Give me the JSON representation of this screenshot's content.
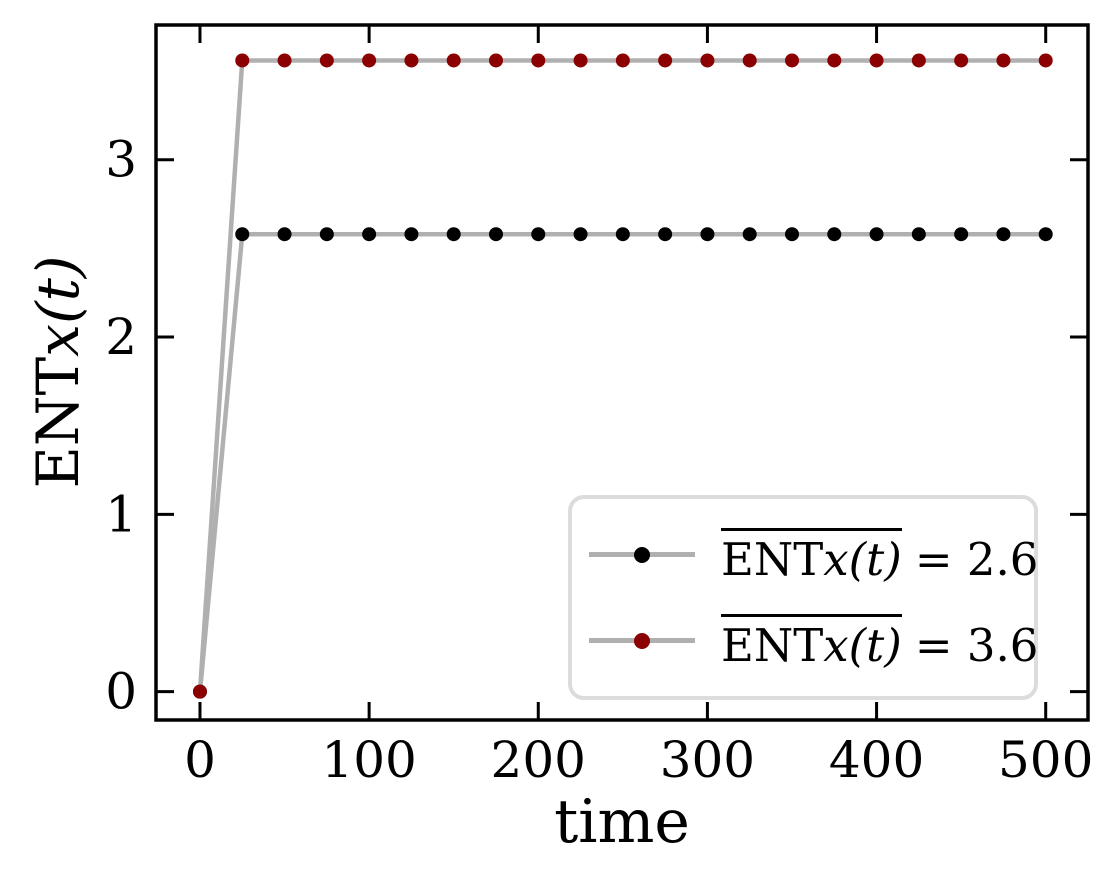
{
  "figure": {
    "background": "#ffffff",
    "frame_color": "#000000"
  },
  "labels": {
    "xlabel": "time",
    "ylabel_roman": "ENT",
    "ylabel_italic": "x(t)"
  },
  "legend": {
    "border_color": "#dcdcdc",
    "entries": [
      {
        "overline_roman": "ENT",
        "overline_italic": "x(t)",
        "value": "= 2.6",
        "marker_color": "#000000"
      },
      {
        "overline_roman": "ENT",
        "overline_italic": "x(t)",
        "value": "= 3.6",
        "marker_color": "#8b0000"
      }
    ]
  },
  "chart_data": {
    "type": "line",
    "title": "",
    "xlabel": "time",
    "ylabel": "ENTx(t)",
    "xlim": [
      -26,
      525
    ],
    "ylim": [
      -0.16,
      3.76
    ],
    "x_ticks": [
      0,
      100,
      200,
      300,
      400,
      500
    ],
    "y_ticks": [
      0,
      1,
      2,
      3
    ],
    "grid": false,
    "legend_position": "lower right",
    "x": [
      0,
      25,
      50,
      75,
      100,
      125,
      150,
      175,
      200,
      225,
      250,
      275,
      300,
      325,
      350,
      375,
      400,
      425,
      450,
      475,
      500
    ],
    "series": [
      {
        "name": "time-average ENTx(t) = 2.6",
        "marker_color": "#000000",
        "line_color": "#b0b0b0",
        "values": [
          0,
          2.58,
          2.58,
          2.58,
          2.58,
          2.58,
          2.58,
          2.58,
          2.58,
          2.58,
          2.58,
          2.58,
          2.58,
          2.58,
          2.58,
          2.58,
          2.58,
          2.58,
          2.58,
          2.58,
          2.58
        ]
      },
      {
        "name": "time-average ENTx(t) = 3.6",
        "marker_color": "#8b0000",
        "line_color": "#b0b0b0",
        "values": [
          0,
          3.56,
          3.56,
          3.56,
          3.56,
          3.56,
          3.56,
          3.56,
          3.56,
          3.56,
          3.56,
          3.56,
          3.56,
          3.56,
          3.56,
          3.56,
          3.56,
          3.56,
          3.56,
          3.56,
          3.56
        ]
      }
    ]
  }
}
